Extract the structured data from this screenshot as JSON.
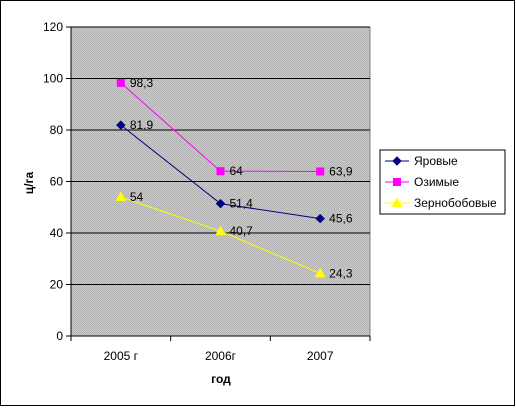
{
  "colors": {
    "plot_background": "#c0c0c0",
    "gridline": "#000000",
    "outer_border": "#000000"
  },
  "chart_data": {
    "type": "line",
    "title": "",
    "xlabel": "год",
    "ylabel": "ц/га",
    "categories": [
      "2005 г",
      "2006г",
      "2007"
    ],
    "ylim": [
      0,
      120
    ],
    "yticks": [
      0,
      20,
      40,
      60,
      80,
      100,
      120
    ],
    "grid": true,
    "legend_position": "right",
    "series": [
      {
        "name": "Яровые",
        "values": [
          81.9,
          51.4,
          45.6
        ],
        "labels": [
          "81,9",
          "51,4",
          "45,6"
        ],
        "color": "#000080",
        "marker": "diamond"
      },
      {
        "name": "Озимые",
        "values": [
          98.3,
          64,
          63.9
        ],
        "labels": [
          "98,3",
          "64",
          "63,9"
        ],
        "color": "#ff00ff",
        "marker": "square"
      },
      {
        "name": "Зернобобовые",
        "values": [
          54,
          40.7,
          24.3
        ],
        "labels": [
          "54",
          "40,7",
          "24,3"
        ],
        "color": "#ffff00",
        "marker": "triangle"
      }
    ]
  }
}
